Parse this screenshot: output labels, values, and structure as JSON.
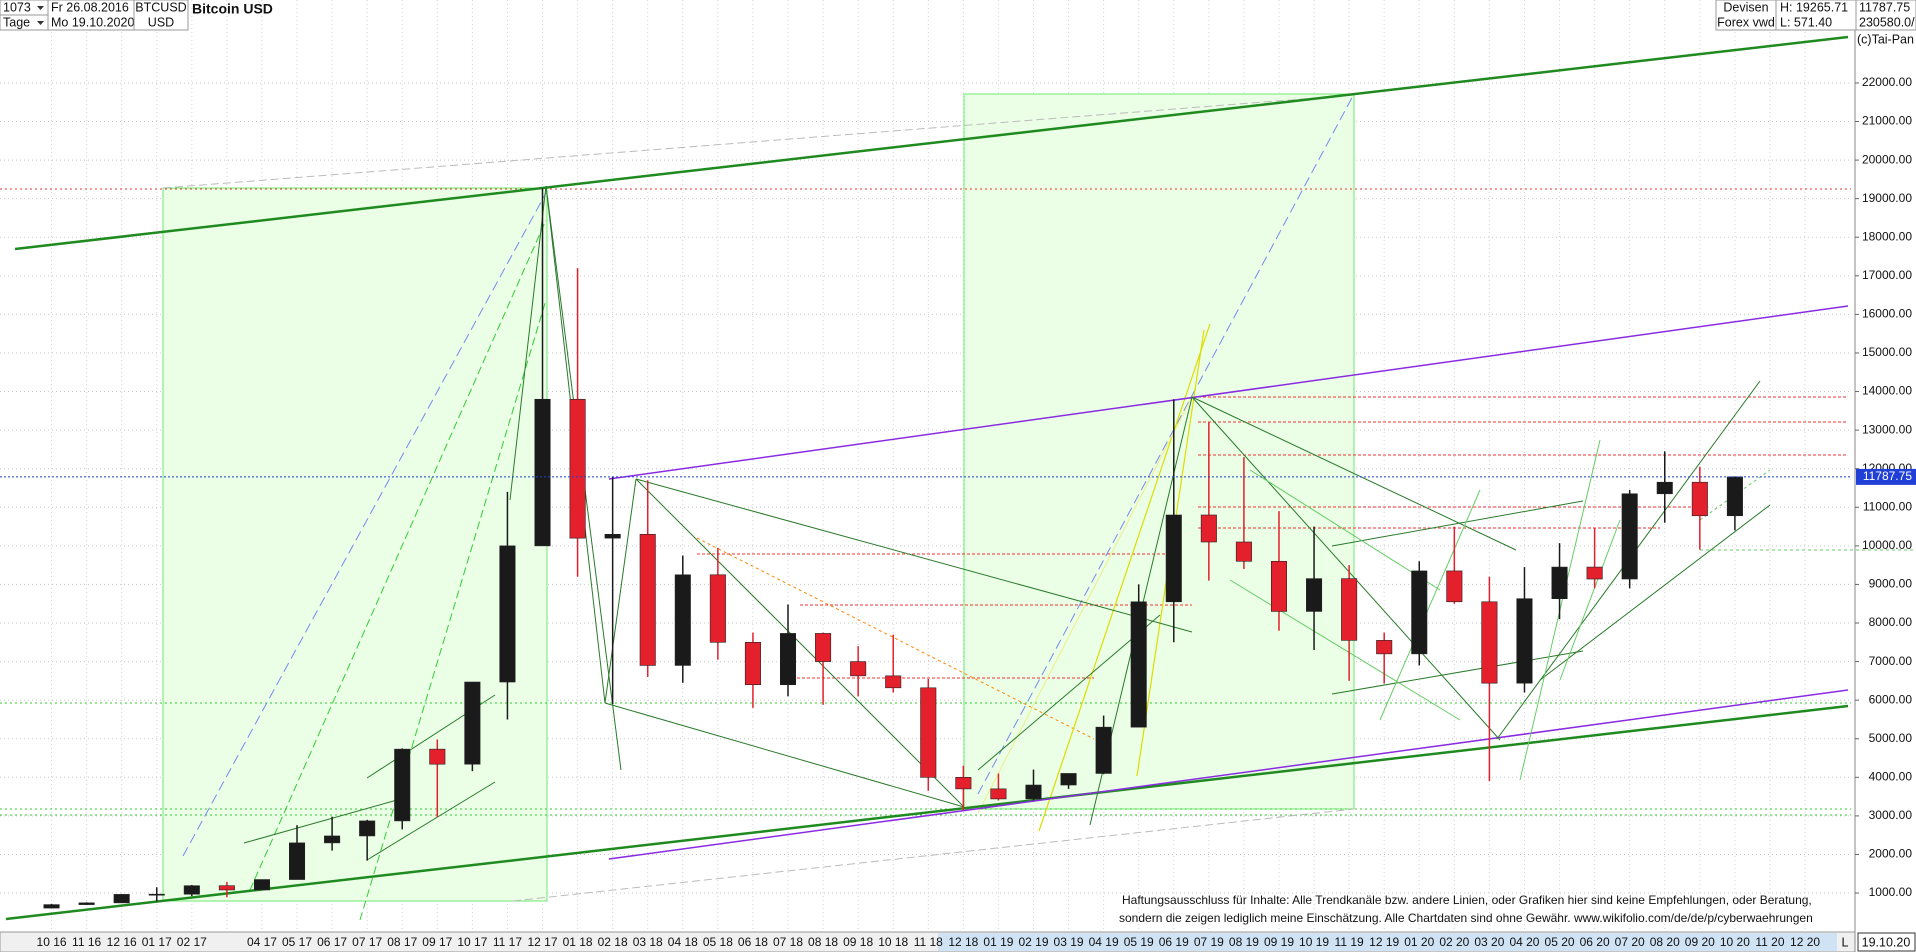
{
  "toolbar": {
    "count": "1073",
    "period": "Tage",
    "from": "Fr 26.08.2016",
    "to": "Mo 19.10.2020",
    "symbol": "BTCUSD",
    "currency": "USD",
    "market": "Devisen",
    "source": "Forex vwd",
    "high": "H: 19265.71",
    "low": "L: 571.40",
    "volume": "230580.0/",
    "copyright": "(c)Tai-Pan"
  },
  "disclaimer": [
    "Haftungsausschluss für Inhalte: Alle Trendkanäle bzw. andere Linien, oder Grafiken hier sind keine Empfehlungen, oder Beratung,",
    "sondern die zeigen lediglich meine  Einschätzung. Alle Chartdaten sind ohne Gewähr.  www.wikifolio.com/de/de/p/cyberwaehrungen"
  ],
  "chart_data": {
    "type": "candlestick",
    "title": "Bitcoin USD",
    "categories": [
      "10 16",
      "11 16",
      "12 16",
      "01 17",
      "02 17",
      null,
      "04 17",
      "05 17",
      "06 17",
      "07 17",
      "08 17",
      "09 17",
      "10 17",
      "11 17",
      "12 17",
      "01 18",
      "02 18",
      "03 18",
      "04 18",
      "05 18",
      "06 18",
      "07 18",
      "08 18",
      "09 18",
      "10 18",
      "11 18",
      "12 18",
      "01 19",
      "02 19",
      "03 19",
      "04 19",
      "05 19",
      "06 19",
      "07 19",
      "08 19",
      "09 19",
      "10 19",
      "11 19",
      "12 19",
      "01 20",
      "02 20",
      "03 20",
      "04 20",
      "05 20",
      "06 20",
      "07 20",
      "08 20",
      "09 20",
      "10 20",
      "11 20",
      "12 20"
    ],
    "open": [
      610,
      700,
      745,
      965,
      970,
      1190,
      1080,
      1350,
      2300,
      2480,
      2870,
      4730,
      4340,
      6470,
      10000,
      13800,
      10200,
      10300,
      6900,
      9250,
      7500,
      6400,
      7730,
      7000,
      6630,
      6320,
      4000,
      3700,
      3440,
      3800,
      4100,
      5300,
      8550,
      10800,
      10100,
      9600,
      8300,
      9150,
      7550,
      7200,
      9350,
      8550,
      6440,
      8630,
      9450,
      9140,
      11350,
      11650,
      10780,
      null,
      null
    ],
    "high": [
      720,
      760,
      975,
      1150,
      1210,
      1290,
      1350,
      2760,
      2980,
      2900,
      4750,
      4980,
      6470,
      11400,
      19265.71,
      17200,
      11800,
      11700,
      9750,
      9950,
      7750,
      8480,
      7750,
      7400,
      7700,
      6550,
      4300,
      4100,
      4200,
      4100,
      5600,
      9000,
      13800,
      13200,
      12300,
      10900,
      10500,
      9500,
      7750,
      9600,
      10500,
      9200,
      9450,
      10070,
      10450,
      11450,
      12450,
      12050,
      11800,
      null,
      null
    ],
    "low": [
      605,
      690,
      745,
      780,
      920,
      890,
      1080,
      1350,
      2100,
      1840,
      2650,
      2970,
      4160,
      5500,
      10000,
      9200,
      5900,
      6600,
      6450,
      7050,
      5800,
      6100,
      5880,
      6100,
      6200,
      3650,
      3150,
      3400,
      3400,
      3700,
      4080,
      5300,
      7500,
      9100,
      9400,
      7800,
      7300,
      6500,
      6430,
      6900,
      8500,
      3900,
      6200,
      8100,
      8900,
      8900,
      10600,
      9900,
      10400,
      null,
      null
    ],
    "close": [
      700,
      745,
      965,
      970,
      1190,
      1080,
      1350,
      2300,
      2480,
      2870,
      4730,
      4340,
      6470,
      10000,
      13800,
      10200,
      10300,
      6900,
      9250,
      7500,
      6400,
      7730,
      7000,
      6630,
      6320,
      4000,
      3700,
      3440,
      3800,
      4100,
      5300,
      8550,
      10800,
      10100,
      9600,
      8300,
      9150,
      7550,
      7200,
      9350,
      8550,
      6440,
      8630,
      9450,
      9140,
      11350,
      11650,
      10780,
      11787.75,
      null,
      null
    ],
    "colors": {
      "up": "#1a1a1a",
      "down": "#e3202b"
    },
    "last_color": "#1f3fd6",
    "ylim": [
      -10,
      24150
    ],
    "yticks": [
      {
        "value": 1000,
        "label": "1000.00"
      },
      {
        "value": 2000,
        "label": "2000.00"
      },
      {
        "value": 3000,
        "label": "3000.00"
      },
      {
        "value": 4000,
        "label": "4000.00"
      },
      {
        "value": 5000,
        "label": "5000.00"
      },
      {
        "value": 6000,
        "label": "6000.00"
      },
      {
        "value": 7000,
        "label": "7000.00"
      },
      {
        "value": 8000,
        "label": "8000.00"
      },
      {
        "value": 9000,
        "label": "9000.00"
      },
      {
        "value": 10000,
        "label": "10000.00"
      },
      {
        "value": 11000,
        "label": "11000.00"
      },
      {
        "value": 12000,
        "label": "12000.00"
      },
      {
        "value": 13000,
        "label": "13000.00"
      },
      {
        "value": 14000,
        "label": "14000.00"
      },
      {
        "value": 15000,
        "label": "15000.00"
      },
      {
        "value": 16000,
        "label": "16000.00"
      },
      {
        "value": 17000,
        "label": "17000.00"
      },
      {
        "value": 18000,
        "label": "18000.00"
      },
      {
        "value": 19000,
        "label": "19000.00"
      },
      {
        "value": 20000,
        "label": "20000.00"
      },
      {
        "value": 21000,
        "label": "21000.00"
      },
      {
        "value": 22000,
        "label": "22000.00"
      }
    ],
    "grid": true,
    "x_end_marker": "L",
    "x_end_date": "19.10.20"
  }
}
